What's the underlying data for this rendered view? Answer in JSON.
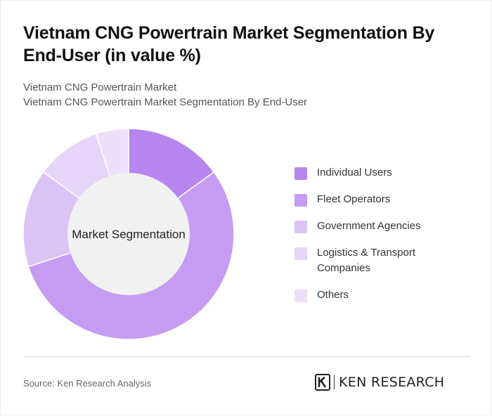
{
  "header": {
    "title": "Vietnam CNG Powertrain Market Segmentation By End-User (in value %)",
    "subtitle_line1": "Vietnam CNG Powertrain Market",
    "subtitle_line2": "Vietnam CNG Powertrain Market Segmentation By End-User"
  },
  "chart_data": {
    "type": "pie",
    "variant": "donut",
    "center_label": "Market Segmentation",
    "categories": [
      "Individual Users",
      "Fleet Operators",
      "Government Agencies",
      "Logistics & Transport Companies",
      "Others"
    ],
    "values": [
      15,
      55,
      15,
      10,
      5
    ],
    "colors": [
      "#b685ee",
      "#c59cf1",
      "#dbc3f6",
      "#e5d5f8",
      "#ecdffa"
    ],
    "hole_color": "#f1f1f1",
    "legend_position": "right",
    "start_angle_deg": 0,
    "direction": "clockwise"
  },
  "footer": {
    "source": "Source: Ken Research Analysis",
    "brand": "KEN RESEARCH",
    "logo_icon": "ken-research-logo-icon"
  }
}
